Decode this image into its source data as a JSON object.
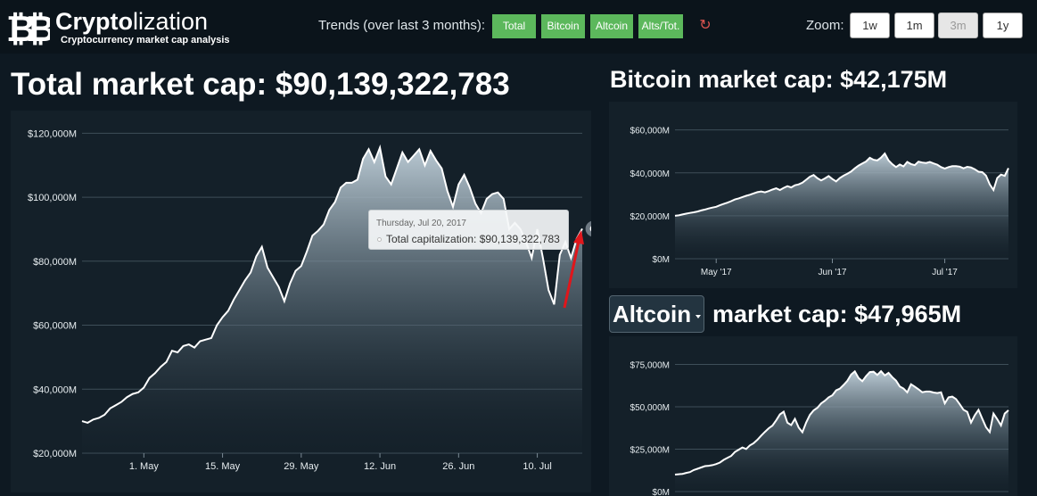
{
  "colors": {
    "background": "#0e1922",
    "panel": "#142029",
    "button_green": "#5cb85c",
    "refresh": "#d9534f",
    "annotation_arrow": "#e0161b"
  },
  "header": {
    "logo_icon": "bitcoin-pair-icon",
    "title_bold": "Crypto",
    "title_rest": "lization",
    "subtitle": "Cryptocurrency market cap analysis",
    "trends_label": "Trends (over last 3 months):",
    "trend_buttons": [
      "Total",
      "Bitcoin",
      "Altcoin",
      "Alts/Tot."
    ],
    "refresh_icon": "refresh-icon",
    "zoom_label": "Zoom:",
    "zoom_buttons": [
      "1w",
      "1m",
      "3m",
      "1y"
    ],
    "zoom_selected": "3m"
  },
  "total": {
    "heading": "Total market cap: $90,139,322,783",
    "tooltip": {
      "date": "Thursday, Jul 20, 2017",
      "label": "Total capitalization:",
      "value": "$90,139,322,783"
    }
  },
  "bitcoin": {
    "heading": "Bitcoin market cap: $42,175M"
  },
  "altcoin": {
    "select_value": "Altcoin",
    "heading_rest": "market cap: $47,965M"
  },
  "chart_data": [
    {
      "type": "area",
      "name": "total",
      "x_start": "2017-04-20",
      "x_step_days": 1,
      "x_ticks": [
        "1. May",
        "15. May",
        "29. May",
        "12. Jun",
        "26. Jun",
        "10. Jul"
      ],
      "x_tick_dates": [
        "2017-05-01",
        "2017-05-15",
        "2017-05-29",
        "2017-06-12",
        "2017-06-26",
        "2017-07-10"
      ],
      "y_ticks": [
        "$20,000M",
        "$40,000M",
        "$60,000M",
        "$80,000M",
        "$100,000M",
        "$120,000M"
      ],
      "y_tick_values": [
        20000,
        40000,
        60000,
        80000,
        100000,
        120000
      ],
      "ylim": [
        20000,
        124000
      ],
      "values": [
        30000,
        29500,
        30500,
        31000,
        32000,
        34000,
        35000,
        36000,
        37500,
        38500,
        39000,
        40500,
        43500,
        45000,
        47000,
        48500,
        52000,
        51500,
        53500,
        54000,
        53000,
        55000,
        55500,
        56000,
        60000,
        62500,
        64500,
        68000,
        71000,
        74000,
        76500,
        81500,
        84500,
        78000,
        75000,
        72000,
        67500,
        73000,
        77000,
        78500,
        83000,
        88000,
        89500,
        91500,
        96000,
        98500,
        103000,
        104500,
        104500,
        105500,
        112000,
        115000,
        111000,
        115500,
        106500,
        104000,
        109000,
        114000,
        111000,
        113000,
        115000,
        110000,
        114500,
        111500,
        109000,
        102000,
        97000,
        104000,
        107000,
        103000,
        98000,
        95000,
        99500,
        101000,
        101500,
        99500,
        90000,
        92000,
        90000,
        86000,
        81000,
        90000,
        81000,
        71000,
        66500,
        82000,
        86000,
        81000,
        87000,
        90139
      ],
      "hover_point": {
        "date": "2017-07-20",
        "value": 90139
      }
    },
    {
      "type": "area",
      "name": "bitcoin",
      "x_start": "2017-04-20",
      "x_step_days": 1,
      "x_ticks": [
        "May '17",
        "Jun '17",
        "Jul '17"
      ],
      "x_tick_dates": [
        "2017-05-01",
        "2017-06-01",
        "2017-07-01"
      ],
      "y_ticks": [
        "$0M",
        "$20,000M",
        "$40,000M",
        "$60,000M"
      ],
      "y_tick_values": [
        0,
        20000,
        40000,
        60000
      ],
      "ylim": [
        0,
        64000
      ],
      "values": [
        20000,
        20200,
        20600,
        21000,
        21300,
        21600,
        22000,
        22500,
        22900,
        23400,
        23800,
        24200,
        24900,
        25500,
        26100,
        26800,
        27600,
        28100,
        28700,
        29300,
        29800,
        30400,
        31000,
        31300,
        30900,
        31500,
        32200,
        32800,
        32000,
        33000,
        33800,
        33200,
        34200,
        34600,
        35400,
        36800,
        38200,
        39000,
        37500,
        36500,
        37400,
        38500,
        37100,
        36000,
        37600,
        38700,
        39600,
        40600,
        42100,
        43400,
        44400,
        45300,
        47000,
        46100,
        45800,
        47100,
        49000,
        45800,
        44000,
        42700,
        43900,
        43000,
        45100,
        44100,
        43600,
        45200,
        44800,
        44600,
        45100,
        44400,
        43800,
        42700,
        42000,
        42700,
        43100,
        43100,
        42900,
        42100,
        42800,
        42500,
        41700,
        40500,
        40300,
        38700,
        34600,
        32000,
        37600,
        39200,
        38600,
        42175
      ]
    },
    {
      "type": "area",
      "name": "altcoin",
      "x_start": "2017-04-20",
      "x_step_days": 1,
      "y_ticks": [
        "$0M",
        "$25,000M",
        "$50,000M",
        "$75,000M"
      ],
      "y_tick_values": [
        0,
        25000,
        50000,
        75000
      ],
      "ylim": [
        0,
        80000
      ],
      "values": [
        10000,
        10200,
        10400,
        11000,
        11500,
        12700,
        13400,
        14200,
        15000,
        15200,
        15600,
        16200,
        17100,
        18700,
        19900,
        21000,
        23300,
        24700,
        26000,
        25100,
        27200,
        28500,
        30500,
        33000,
        35200,
        37300,
        38900,
        42000,
        45500,
        47100,
        40600,
        39200,
        42900,
        37800,
        35000,
        40700,
        45200,
        47900,
        49400,
        52000,
        53600,
        55600,
        56800,
        59700,
        60700,
        62900,
        65300,
        69000,
        70900,
        67000,
        65100,
        68100,
        70500,
        70700,
        68800,
        71000,
        68500,
        70000,
        67500,
        65400,
        62000,
        60800,
        58500,
        63300,
        61900,
        60300,
        58600,
        59000,
        59000,
        58400,
        58100,
        58500,
        52000,
        55600,
        56000,
        54600,
        51500,
        48200,
        47000,
        40700,
        45000,
        48200,
        43000,
        38000,
        35100,
        46000,
        42700,
        39000,
        46000,
        47965
      ]
    }
  ]
}
